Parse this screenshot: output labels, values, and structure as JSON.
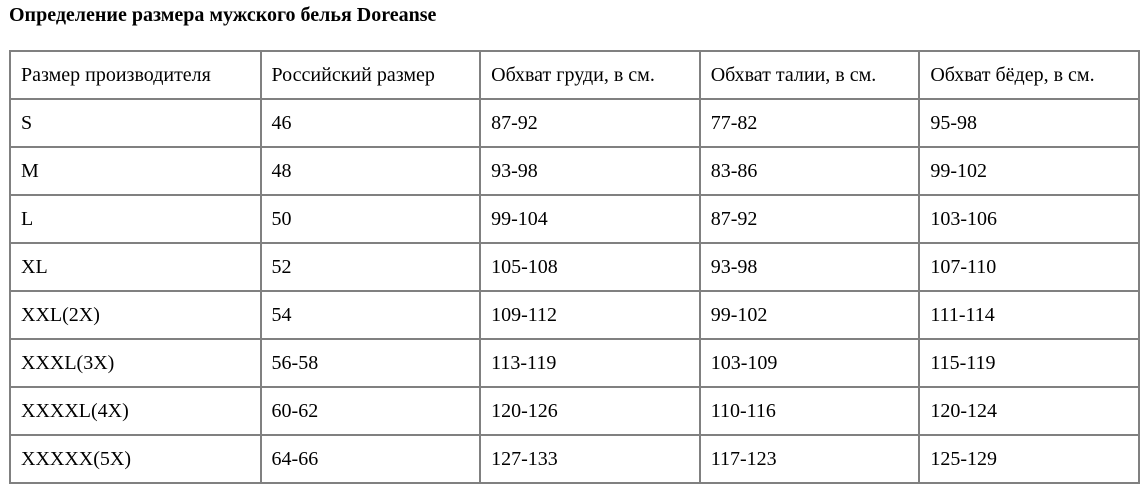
{
  "title": "Определение размера мужского белья Doreanse",
  "table": {
    "headers": [
      "Размер производителя",
      "Российский размер",
      "Обхват груди, в см.",
      "Обхват талии, в см.",
      "Обхват бёдер, в см."
    ],
    "rows": [
      [
        "S",
        "46",
        "87-92",
        "77-82",
        "95-98"
      ],
      [
        "M",
        "48",
        "93-98",
        "83-86",
        "99-102"
      ],
      [
        "L",
        "50",
        "99-104",
        "87-92",
        "103-106"
      ],
      [
        "XL",
        "52",
        "105-108",
        "93-98",
        "107-110"
      ],
      [
        "XXL(2X)",
        "54",
        "109-112",
        "99-102",
        "111-114"
      ],
      [
        "XXXL(3X)",
        "56-58",
        "113-119",
        "103-109",
        "115-119"
      ],
      [
        "XXXXL(4X)",
        "60-62",
        "120-126",
        "110-116",
        "120-124"
      ],
      [
        "XXXXX(5X)",
        "64-66",
        "127-133",
        "117-123",
        "125-129"
      ]
    ]
  }
}
